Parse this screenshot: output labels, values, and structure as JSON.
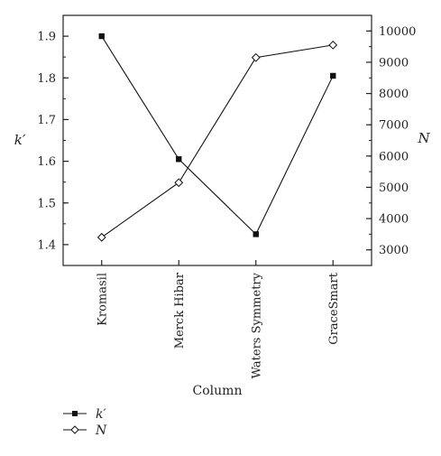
{
  "chart_data": {
    "type": "line",
    "xlabel": "Column",
    "categories": [
      "Kromasil",
      "Merck Hibar",
      "Waters Symmetry",
      "GraceSmart"
    ],
    "left_axis": {
      "label": "k′",
      "range": [
        1.35,
        1.95
      ],
      "ticks": [
        "1.4",
        "1.5",
        "1.6",
        "1.7",
        "1.8",
        "1.9"
      ]
    },
    "right_axis": {
      "label": "N",
      "range": [
        2500,
        10500
      ],
      "ticks": [
        "3000",
        "4000",
        "5000",
        "6000",
        "7000",
        "8000",
        "9000",
        "10000"
      ]
    },
    "series": [
      {
        "name": "k′",
        "axis": "left",
        "marker": "filled-square",
        "values": [
          1.9,
          1.605,
          1.425,
          1.805
        ]
      },
      {
        "name": "N",
        "axis": "right",
        "marker": "open-diamond",
        "values": [
          3400,
          5150,
          9150,
          9550
        ]
      }
    ],
    "grid": false,
    "legend_position": "bottom-left"
  }
}
